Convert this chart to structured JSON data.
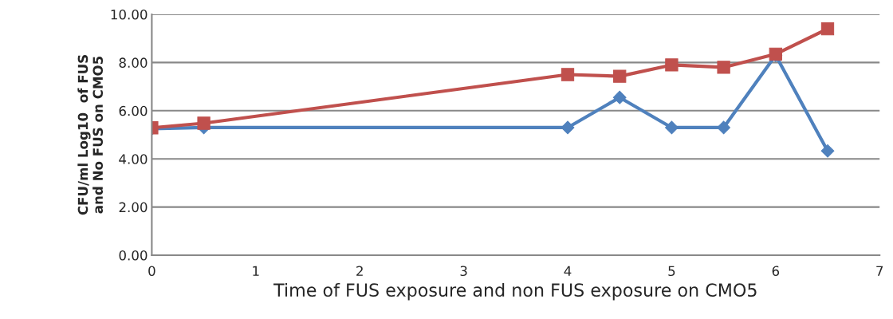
{
  "chart_data": {
    "type": "line",
    "xlabel": "Time of FUS exposure and non FUS exposure on CMO5",
    "ylabel": "CFU/ml Log10  of FUS\nand No FUS on CMO5",
    "xlim": [
      0,
      7
    ],
    "xticks": [
      0,
      1,
      2,
      3,
      4,
      5,
      6,
      7
    ],
    "ylim": [
      0,
      10
    ],
    "yticks": [
      {
        "value": 0,
        "label": "0.00"
      },
      {
        "value": 2,
        "label": "2.00"
      },
      {
        "value": 4,
        "label": "4.00"
      },
      {
        "value": 6,
        "label": "6.00"
      },
      {
        "value": 8,
        "label": "8.00"
      },
      {
        "value": 10,
        "label": "10.00"
      }
    ],
    "grid": "y",
    "series": [
      {
        "color": "#4f81bd",
        "marker": "diamond",
        "x": [
          0,
          0.5,
          4,
          4.5,
          5,
          5.5,
          6,
          6.5
        ],
        "values": [
          5.25,
          5.3,
          5.3,
          6.55,
          5.3,
          5.3,
          8.3,
          4.33
        ]
      },
      {
        "color": "#c0504d",
        "marker": "square",
        "x": [
          0,
          0.5,
          4,
          4.5,
          5,
          5.5,
          6,
          6.5
        ],
        "values": [
          5.29,
          5.48,
          7.5,
          7.43,
          7.9,
          7.8,
          8.35,
          9.4
        ]
      }
    ]
  }
}
